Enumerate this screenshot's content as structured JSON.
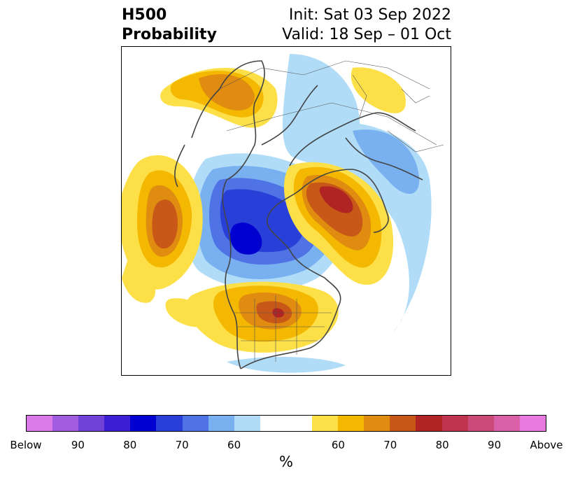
{
  "title": {
    "left_line1": "H500",
    "left_line2": "Probability",
    "right_line1": "Init: Sat 03 Sep 2022",
    "right_line2": "Valid: 18 Sep – 01 Oct"
  },
  "colorbar": {
    "colors": [
      "#d97ae8",
      "#a15ce0",
      "#7042d8",
      "#3c1fd4",
      "#0000d0",
      "#2840d8",
      "#4f72e4",
      "#78b0f0",
      "#b0dcf8",
      "#ffffff",
      "#ffffff",
      "#fde048",
      "#f4b800",
      "#e08c10",
      "#c85818",
      "#b02424",
      "#c03450",
      "#cc4a78",
      "#da60a8",
      "#e87ae0"
    ],
    "tick_labels": [
      "Below",
      "90",
      "80",
      "70",
      "60",
      "60",
      "70",
      "80",
      "90",
      "Above"
    ],
    "unit_label": "%"
  },
  "legend_colors": {
    "below": "#0000d0",
    "above": "#b02424"
  }
}
